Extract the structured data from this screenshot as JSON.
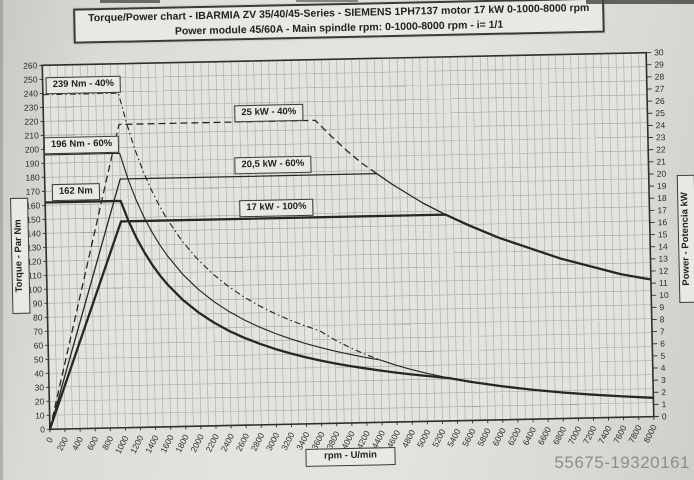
{
  "title": {
    "line1": "Torque/Power chart  -  IBARMIA  ZV 35/40/45-Series  -  SIEMENS 1PH7137 motor  17 kW  0-1000-8000 rpm",
    "line2": "Power module 45/60A  -  Main spindle rpm: 0-1000-8000 rpm  -  i= 1/1"
  },
  "watermark": "55675-19320161",
  "chart_data": {
    "type": "line",
    "title": "Torque/Power chart IBARMIA ZV 35/40/45-Series",
    "grid": "on, vertical every 100 rpm, horizontal every 10 Nm",
    "x_axis": {
      "label": "rpm  -  U/min",
      "min": 0,
      "max": 8000,
      "tick_step": 200,
      "grid_step": 100,
      "tick_label_rotation_deg": -62
    },
    "y_left_axis": {
      "label": "Torque - Par  Nm",
      "min": 0,
      "max": 260,
      "tick_step": 10
    },
    "y_right_axis": {
      "label": "Power - Potencia  kW",
      "min": 0,
      "max": 30,
      "tick_step": 1
    },
    "annotations": [
      {
        "id": "a239",
        "text": "239 Nm - 40%"
      },
      {
        "id": "a196",
        "text": "196 Nm - 60%"
      },
      {
        "id": "a162",
        "text": "162 Nm"
      },
      {
        "id": "a25",
        "text": "25 kW - 40%"
      },
      {
        "id": "a205",
        "text": "20,5 kW - 60%"
      },
      {
        "id": "a17",
        "text": "17 kW - 100%"
      }
    ],
    "series": [
      {
        "name": "torque-40pct-duty",
        "axis": "left",
        "unit": "Nm",
        "line": "dash-dot",
        "width": 1.15,
        "points": [
          [
            0,
            239
          ],
          [
            1000,
            239
          ],
          [
            1100,
            217.2
          ],
          [
            1200,
            199
          ],
          [
            1300,
            183.7
          ],
          [
            1400,
            170.5
          ],
          [
            1500,
            159.2
          ],
          [
            1600,
            149.2
          ],
          [
            1800,
            132.6
          ],
          [
            2000,
            119.4
          ],
          [
            2200,
            108.5
          ],
          [
            2400,
            99.5
          ],
          [
            2600,
            91.8
          ],
          [
            2800,
            85.3
          ],
          [
            3000,
            79.6
          ],
          [
            3200,
            74.6
          ],
          [
            3400,
            70.2
          ],
          [
            3600,
            66.3
          ],
          [
            3800,
            59.5
          ],
          [
            4000,
            53.7
          ],
          [
            4200,
            48.7
          ],
          [
            4400,
            44.4
          ]
        ]
      },
      {
        "name": "torque-60pct-duty",
        "axis": "left",
        "unit": "Nm",
        "line": "solid-thin",
        "width": 1.15,
        "points": [
          [
            0,
            196
          ],
          [
            1000,
            196
          ],
          [
            1100,
            178.1
          ],
          [
            1200,
            163.2
          ],
          [
            1300,
            150.6
          ],
          [
            1400,
            139.9
          ],
          [
            1500,
            130.5
          ],
          [
            1600,
            122.4
          ],
          [
            1800,
            108.8
          ],
          [
            2000,
            97.9
          ],
          [
            2200,
            89
          ],
          [
            2400,
            81.6
          ],
          [
            2600,
            75.3
          ],
          [
            2800,
            69.9
          ],
          [
            3000,
            65.3
          ],
          [
            3200,
            61.2
          ],
          [
            3400,
            57.6
          ],
          [
            3600,
            54.4
          ],
          [
            3800,
            51.5
          ],
          [
            4000,
            48.9
          ],
          [
            4200,
            46.6
          ],
          [
            4400,
            44.4
          ],
          [
            4600,
            40.6
          ],
          [
            4800,
            37.3
          ],
          [
            5000,
            34.4
          ],
          [
            5300,
            30.6
          ],
          [
            5600,
            27.4
          ],
          [
            6000,
            23.9
          ],
          [
            6400,
            21
          ],
          [
            6800,
            18.6
          ],
          [
            7200,
            16.6
          ],
          [
            7600,
            14.9
          ],
          [
            8000,
            13.4
          ]
        ]
      },
      {
        "name": "power-40pct-duty",
        "axis": "right",
        "unit": "kW",
        "line": "dash",
        "width": 1.3,
        "points": [
          [
            0,
            0
          ],
          [
            1000,
            25
          ],
          [
            3600,
            25
          ],
          [
            3800,
            23.7
          ],
          [
            4000,
            22.5
          ],
          [
            4200,
            21.4
          ],
          [
            4400,
            20.5
          ]
        ]
      },
      {
        "name": "power-60pct-duty",
        "axis": "right",
        "unit": "kW",
        "line": "solid-thin",
        "width": 1.3,
        "points": [
          [
            0,
            0
          ],
          [
            1000,
            20.5
          ],
          [
            4400,
            20.5
          ],
          [
            4600,
            19.6
          ],
          [
            4800,
            18.8
          ],
          [
            5000,
            18
          ],
          [
            5300,
            17
          ],
          [
            5600,
            16.1
          ],
          [
            6000,
            15
          ],
          [
            6400,
            14.1
          ],
          [
            6800,
            13.2
          ],
          [
            7200,
            12.5
          ],
          [
            7600,
            11.8
          ],
          [
            8000,
            11.3
          ]
        ]
      },
      {
        "name": "torque-100pct-duty",
        "axis": "left",
        "unit": "Nm",
        "line": "solid-thick",
        "width": 2.3,
        "points": [
          [
            0,
            162
          ],
          [
            1000,
            162
          ],
          [
            1100,
            147.3
          ],
          [
            1200,
            135.3
          ],
          [
            1300,
            124.9
          ],
          [
            1400,
            116
          ],
          [
            1500,
            108.2
          ],
          [
            1600,
            101.5
          ],
          [
            1800,
            90.2
          ],
          [
            2000,
            81.2
          ],
          [
            2200,
            73.8
          ],
          [
            2400,
            67.6
          ],
          [
            2600,
            62.4
          ],
          [
            2800,
            58
          ],
          [
            3000,
            54.1
          ],
          [
            3200,
            50.7
          ],
          [
            3400,
            47.7
          ],
          [
            3600,
            45.1
          ],
          [
            3800,
            42.7
          ],
          [
            4000,
            40.6
          ],
          [
            4200,
            38.7
          ],
          [
            4400,
            36.9
          ],
          [
            4600,
            35.3
          ],
          [
            4800,
            33.8
          ],
          [
            5000,
            32.5
          ],
          [
            5300,
            30.6
          ],
          [
            5600,
            27.4
          ],
          [
            6000,
            23.9
          ],
          [
            6400,
            21
          ],
          [
            6800,
            18.6
          ],
          [
            7200,
            16.6
          ],
          [
            7600,
            14.9
          ],
          [
            8000,
            13.4
          ]
        ]
      },
      {
        "name": "power-100pct-duty",
        "axis": "right",
        "unit": "kW",
        "line": "solid-thick",
        "width": 2.3,
        "points": [
          [
            0,
            0
          ],
          [
            1000,
            17
          ],
          [
            5300,
            17
          ],
          [
            5600,
            16.1
          ],
          [
            6000,
            15
          ],
          [
            6400,
            14.1
          ],
          [
            6800,
            13.2
          ],
          [
            7200,
            12.5
          ],
          [
            7600,
            11.8
          ],
          [
            8000,
            11.3
          ]
        ]
      }
    ],
    "colors": {
      "curves": "#262624",
      "grid": "#98978f",
      "frame": "#2e2e2c",
      "paper": "#e4e3df"
    }
  }
}
